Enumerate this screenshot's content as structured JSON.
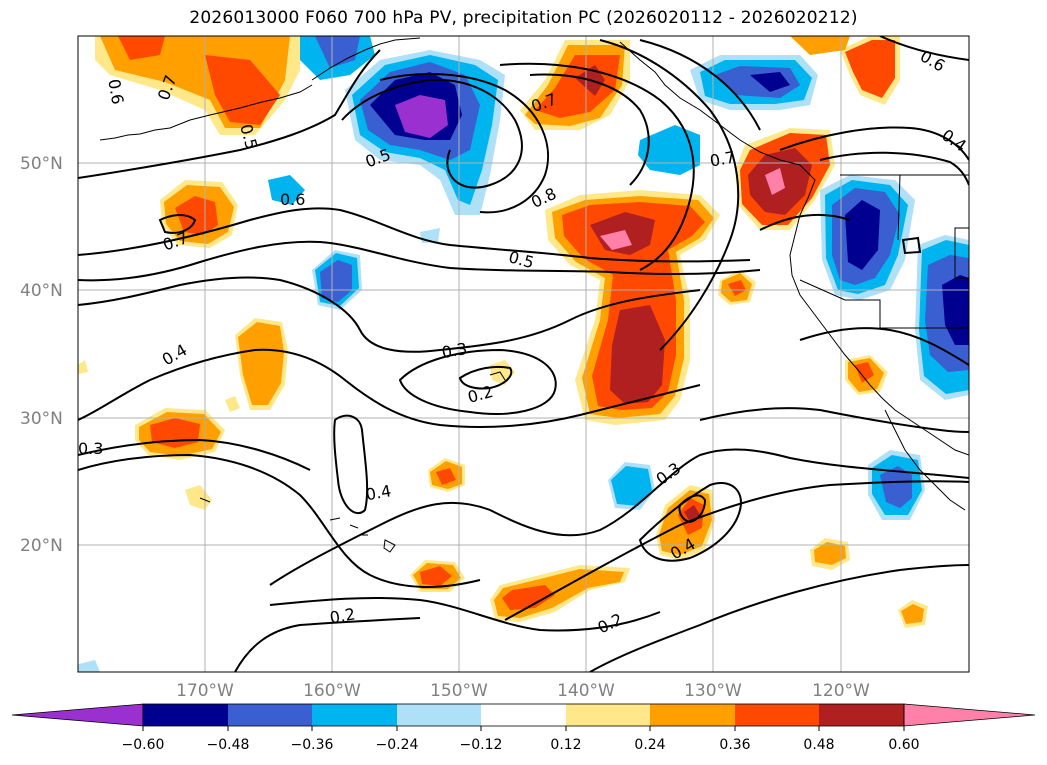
{
  "title": "2026013000 F060 700 hPa PV, precipitation PC (2026020112 - 2026020212)",
  "lon_ticks": [
    "170°W",
    "160°W",
    "150°W",
    "140°W",
    "130°W",
    "120°W"
  ],
  "lat_ticks": [
    "50°N",
    "40°N",
    "30°N",
    "20°N"
  ],
  "contour_labels": [
    "0.6",
    "0.7",
    "0.6",
    "0.7",
    "0.5",
    "0.8",
    "0.5",
    "0.6",
    "0.7",
    "0.7",
    "0.4",
    "0.4",
    "0.3",
    "0.2",
    "0.3",
    "0.4",
    "0.3",
    "0.4",
    "0.2",
    "0.2",
    "0.5"
  ],
  "colorbar": {
    "ticks": [
      "−0.60",
      "−0.48",
      "−0.36",
      "−0.24",
      "−0.12",
      "0.12",
      "0.24",
      "0.36",
      "0.48",
      "0.60"
    ],
    "colors": [
      "#9b30d0",
      "#000090",
      "#3a5fd0",
      "#00b4f0",
      "#aee0f8",
      "#ffffff",
      "#ffe88a",
      "#ffa000",
      "#ff4800",
      "#b02020",
      "#ff80a8"
    ]
  },
  "palette": {
    "purple": "#9b30d0",
    "navy": "#000090",
    "blue": "#3a5fd0",
    "cyan": "#00b4f0",
    "lightcyan": "#aee0f8",
    "lightyellow": "#ffe88a",
    "orange": "#ffa000",
    "redorange": "#ff4800",
    "darkred": "#b02020",
    "pink": "#ff80a8"
  }
}
